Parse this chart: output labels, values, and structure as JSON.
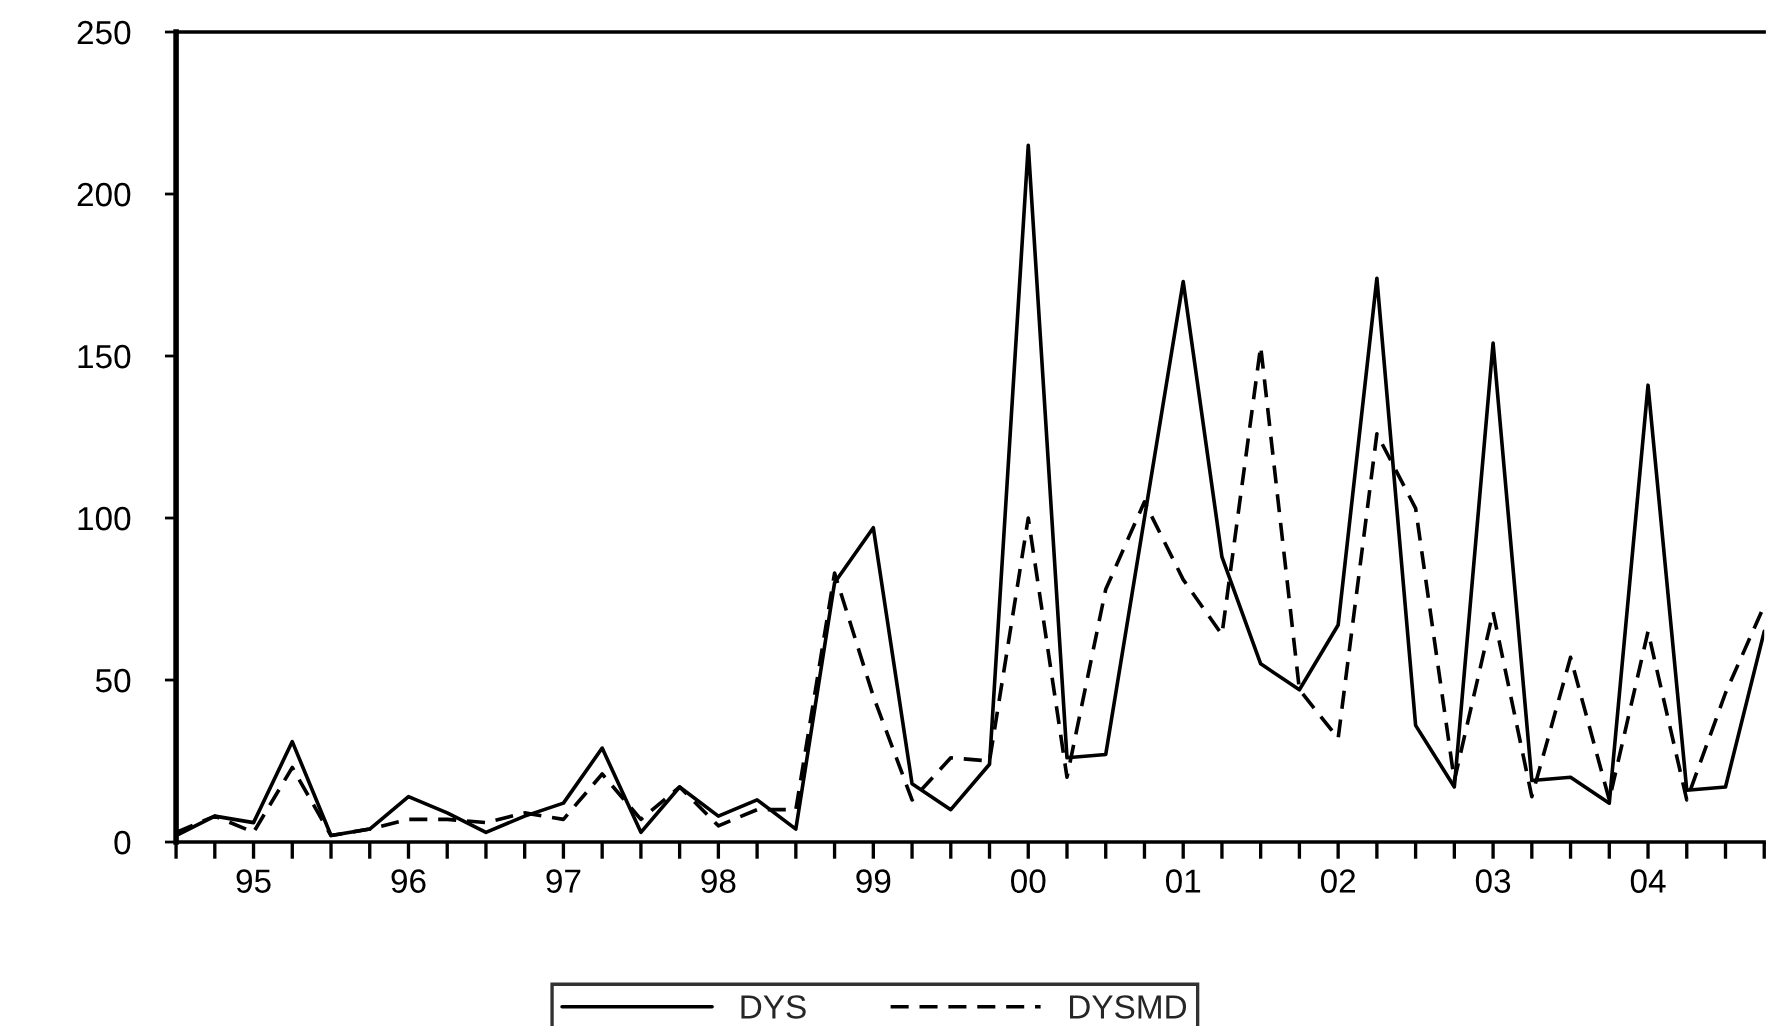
{
  "chart_data": {
    "type": "line",
    "x": [
      1994.5,
      1994.75,
      1995,
      1995.25,
      1995.5,
      1995.75,
      1996,
      1996.25,
      1996.5,
      1996.75,
      1997,
      1997.25,
      1997.5,
      1997.75,
      1998,
      1998.25,
      1998.5,
      1998.75,
      1999,
      1999.25,
      1999.5,
      1999.75,
      2000,
      2000.25,
      2000.5,
      2000.75,
      2001,
      2001.25,
      2001.5,
      2001.75,
      2002,
      2002.25,
      2002.5,
      2002.75,
      2003,
      2003.25,
      2003.5,
      2003.75,
      2004,
      2004.25,
      2004.5,
      2004.75
    ],
    "series": [
      {
        "name": "DYS",
        "color": "#000000",
        "line_style": "solid",
        "values": [
          2,
          8,
          6,
          31,
          2,
          4,
          14,
          9,
          3,
          8,
          12,
          29,
          3,
          17,
          8,
          13,
          4,
          80,
          97,
          18,
          10,
          24,
          215,
          26,
          27,
          100,
          173,
          88,
          55,
          47,
          67,
          174,
          36,
          17,
          154,
          19,
          20,
          12,
          141,
          16,
          17,
          65
        ]
      },
      {
        "name": "DYSMD",
        "color": "#000000",
        "line_style": "dashed",
        "values": [
          3,
          8,
          3,
          23,
          2,
          4,
          7,
          7,
          6,
          9,
          7,
          21,
          7,
          17,
          5,
          10,
          10,
          83,
          45,
          13,
          26,
          25,
          100,
          20,
          78,
          105,
          81,
          64,
          153,
          47,
          32,
          126,
          103,
          19,
          71,
          14,
          57,
          13,
          65,
          13,
          46,
          73
        ]
      }
    ],
    "xlim": [
      1994.5,
      2004.75
    ],
    "xticks": [
      {
        "value": 1994.5,
        "label": null
      },
      {
        "value": 1994.75,
        "label": null
      },
      {
        "value": 1995,
        "label": "95"
      },
      {
        "value": 1995.25,
        "label": null
      },
      {
        "value": 1995.5,
        "label": null
      },
      {
        "value": 1995.75,
        "label": null
      },
      {
        "value": 1996,
        "label": "96"
      },
      {
        "value": 1996.25,
        "label": null
      },
      {
        "value": 1996.5,
        "label": null
      },
      {
        "value": 1996.75,
        "label": null
      },
      {
        "value": 1997,
        "label": "97"
      },
      {
        "value": 1997.25,
        "label": null
      },
      {
        "value": 1997.5,
        "label": null
      },
      {
        "value": 1997.75,
        "label": null
      },
      {
        "value": 1998,
        "label": "98"
      },
      {
        "value": 1998.25,
        "label": null
      },
      {
        "value": 1998.5,
        "label": null
      },
      {
        "value": 1998.75,
        "label": null
      },
      {
        "value": 1999,
        "label": "99"
      },
      {
        "value": 1999.25,
        "label": null
      },
      {
        "value": 1999.5,
        "label": null
      },
      {
        "value": 1999.75,
        "label": null
      },
      {
        "value": 2000,
        "label": "00"
      },
      {
        "value": 2000.25,
        "label": null
      },
      {
        "value": 2000.5,
        "label": null
      },
      {
        "value": 2000.75,
        "label": null
      },
      {
        "value": 2001,
        "label": "01"
      },
      {
        "value": 2001.25,
        "label": null
      },
      {
        "value": 2001.5,
        "label": null
      },
      {
        "value": 2001.75,
        "label": null
      },
      {
        "value": 2002,
        "label": "02"
      },
      {
        "value": 2002.25,
        "label": null
      },
      {
        "value": 2002.5,
        "label": null
      },
      {
        "value": 2002.75,
        "label": null
      },
      {
        "value": 2003,
        "label": "03"
      },
      {
        "value": 2003.25,
        "label": null
      },
      {
        "value": 2003.5,
        "label": null
      },
      {
        "value": 2003.75,
        "label": null
      },
      {
        "value": 2004,
        "label": "04"
      },
      {
        "value": 2004.25,
        "label": null
      },
      {
        "value": 2004.5,
        "label": null
      },
      {
        "value": 2004.75,
        "label": null
      }
    ],
    "ylim": [
      0,
      250
    ],
    "yticks": [
      0,
      50,
      100,
      150,
      200,
      250
    ],
    "grid": false,
    "legend": "bottom"
  }
}
